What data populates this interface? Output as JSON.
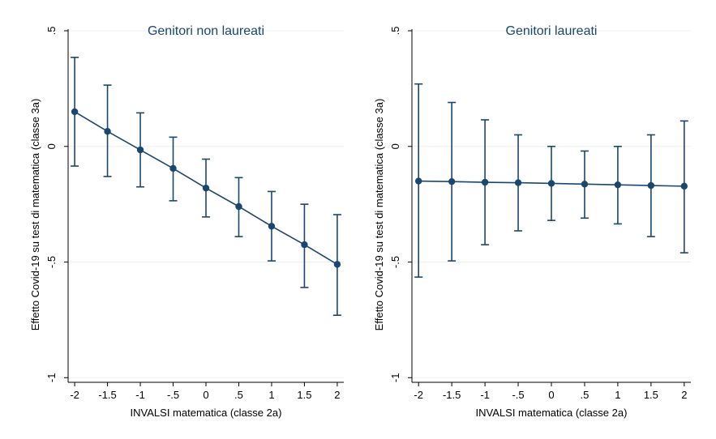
{
  "chart_data": [
    {
      "type": "line",
      "title": "Genitori non laureati",
      "xlabel": "INVALSI matematica (classe 2a)",
      "ylabel": "Effetto Covid-19 su test di matematica (classe 3a)",
      "x": [
        -2,
        -1.5,
        -1,
        -0.5,
        0,
        0.5,
        1,
        1.5,
        2
      ],
      "x_tick_labels": [
        "-2",
        "-1.5",
        "-1",
        "-.5",
        "0",
        ".5",
        "1",
        "1.5",
        "2"
      ],
      "y_ticks": [
        -1,
        -0.5,
        0,
        0.5
      ],
      "y_tick_labels": [
        "-1",
        "-.5",
        "0",
        ".5"
      ],
      "xlim": [
        -2.1,
        2.1
      ],
      "ylim": [
        -1.02,
        0.5
      ],
      "grid": true,
      "series": [
        {
          "values": [
            0.15,
            0.065,
            -0.015,
            -0.095,
            -0.18,
            -0.26,
            -0.345,
            -0.425,
            -0.51
          ],
          "ci_low": [
            -0.085,
            -0.13,
            -0.175,
            -0.235,
            -0.305,
            -0.39,
            -0.495,
            -0.61,
            -0.73
          ],
          "ci_high": [
            0.385,
            0.265,
            0.145,
            0.04,
            -0.055,
            -0.135,
            -0.195,
            -0.25,
            -0.295
          ]
        }
      ],
      "colors": {
        "line": "#1a476f",
        "grid": "#eaf2f3"
      }
    },
    {
      "type": "line",
      "title": "Genitori laureati",
      "xlabel": "INVALSI matematica (classe 2a)",
      "ylabel": "Effetto Covid-19 su test di matematica (classe 3a)",
      "x": [
        -2,
        -1.5,
        -1,
        -0.5,
        0,
        0.5,
        1,
        1.5,
        2
      ],
      "x_tick_labels": [
        "-2",
        "-1.5",
        "-1",
        "-.5",
        "0",
        ".5",
        "1",
        "1.5",
        "2"
      ],
      "y_ticks": [
        -1,
        -0.5,
        0,
        0.5
      ],
      "y_tick_labels": [
        "-1",
        "-.5",
        "0",
        ".5"
      ],
      "xlim": [
        -2.1,
        2.1
      ],
      "ylim": [
        -1.02,
        0.5
      ],
      "grid": true,
      "series": [
        {
          "values": [
            -0.15,
            -0.152,
            -0.155,
            -0.157,
            -0.16,
            -0.163,
            -0.166,
            -0.169,
            -0.172
          ],
          "ci_low": [
            -0.565,
            -0.495,
            -0.425,
            -0.365,
            -0.32,
            -0.31,
            -0.335,
            -0.39,
            -0.46
          ],
          "ci_high": [
            0.27,
            0.19,
            0.115,
            0.05,
            0.0,
            -0.02,
            0.0,
            0.05,
            0.11
          ]
        }
      ],
      "colors": {
        "line": "#1a476f",
        "grid": "#eaf2f3"
      }
    }
  ]
}
